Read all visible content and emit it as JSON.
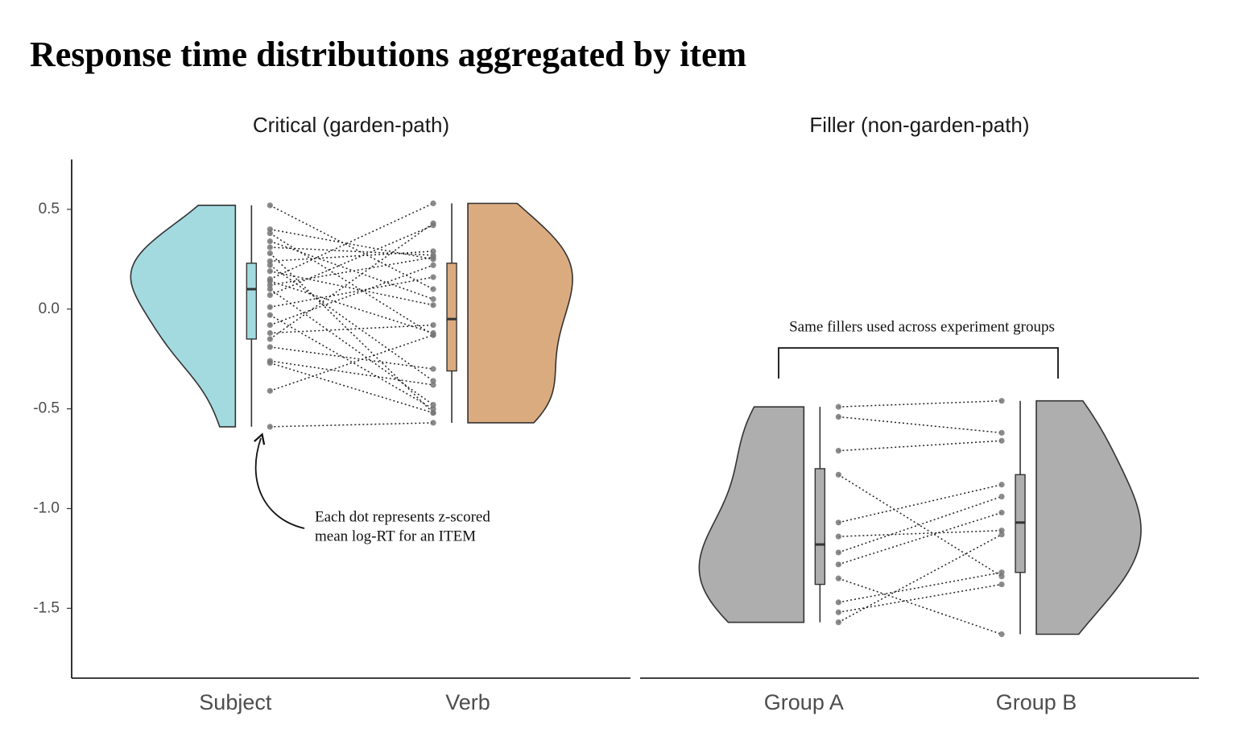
{
  "chart_data": {
    "type": "raincloud",
    "title": "Response time distributions aggregated by item",
    "ylim": [
      -1.85,
      0.75
    ],
    "yticks": [
      0.5,
      {
        "value": 0,
        "label": "0.0"
      },
      -0.5,
      {
        "value": -1,
        "label": "-1.0"
      },
      -1.5
    ],
    "facets": [
      {
        "title": "Critical (garden-path)",
        "annotation": [
          "Each dot represents z-scored",
          "mean log-RT for an ITEM"
        ],
        "groups": [
          {
            "name": "Subject",
            "color": "#a2dae0",
            "values": [
              0.52,
              0.4,
              0.38,
              0.34,
              0.31,
              0.28,
              0.24,
              0.22,
              0.19,
              0.15,
              0.14,
              0.12,
              0.1,
              0.07,
              0.01,
              -0.03,
              -0.08,
              -0.12,
              -0.15,
              -0.19,
              -0.26,
              -0.27,
              -0.41,
              -0.59
            ],
            "box": {
              "min": -0.59,
              "q1": -0.15,
              "median": 0.1,
              "q3": 0.23,
              "max": 0.52
            }
          },
          {
            "name": "Verb",
            "color": "#dbab80",
            "values": [
              0.1,
              0.25,
              -0.13,
              0.05,
              0.27,
              -0.52,
              0.29,
              -0.36,
              0.02,
              0.53,
              -0.12,
              0.26,
              -0.48,
              0.42,
              0.16,
              -0.5,
              0.22,
              -0.08,
              0.43,
              -0.3,
              -0.38,
              -0.52,
              -0.13,
              -0.57
            ],
            "box": {
              "min": -0.57,
              "q1": -0.31,
              "median": -0.05,
              "q3": 0.23,
              "max": 0.53
            }
          }
        ]
      },
      {
        "title": "Filler (non-garden-path)",
        "annotation": [
          "Same fillers used across experiment groups"
        ],
        "groups": [
          {
            "name": "Group A",
            "color": "#aeaeae",
            "values": [
              -0.49,
              -0.54,
              -0.71,
              -0.83,
              -1.07,
              -1.14,
              -1.22,
              -1.28,
              -1.35,
              -1.47,
              -1.52,
              -1.57
            ],
            "box": {
              "min": -1.57,
              "q1": -1.38,
              "median": -1.18,
              "q3": -0.8,
              "max": -0.49
            }
          },
          {
            "name": "Group B",
            "color": "#aeaeae",
            "values": [
              -0.46,
              -0.62,
              -0.66,
              -1.34,
              -0.88,
              -1.11,
              -0.94,
              -1.02,
              -1.63,
              -1.32,
              -1.38,
              -1.13
            ],
            "box": {
              "min": -1.63,
              "q1": -1.32,
              "median": -1.07,
              "q3": -0.83,
              "max": -0.46
            }
          }
        ]
      }
    ]
  }
}
